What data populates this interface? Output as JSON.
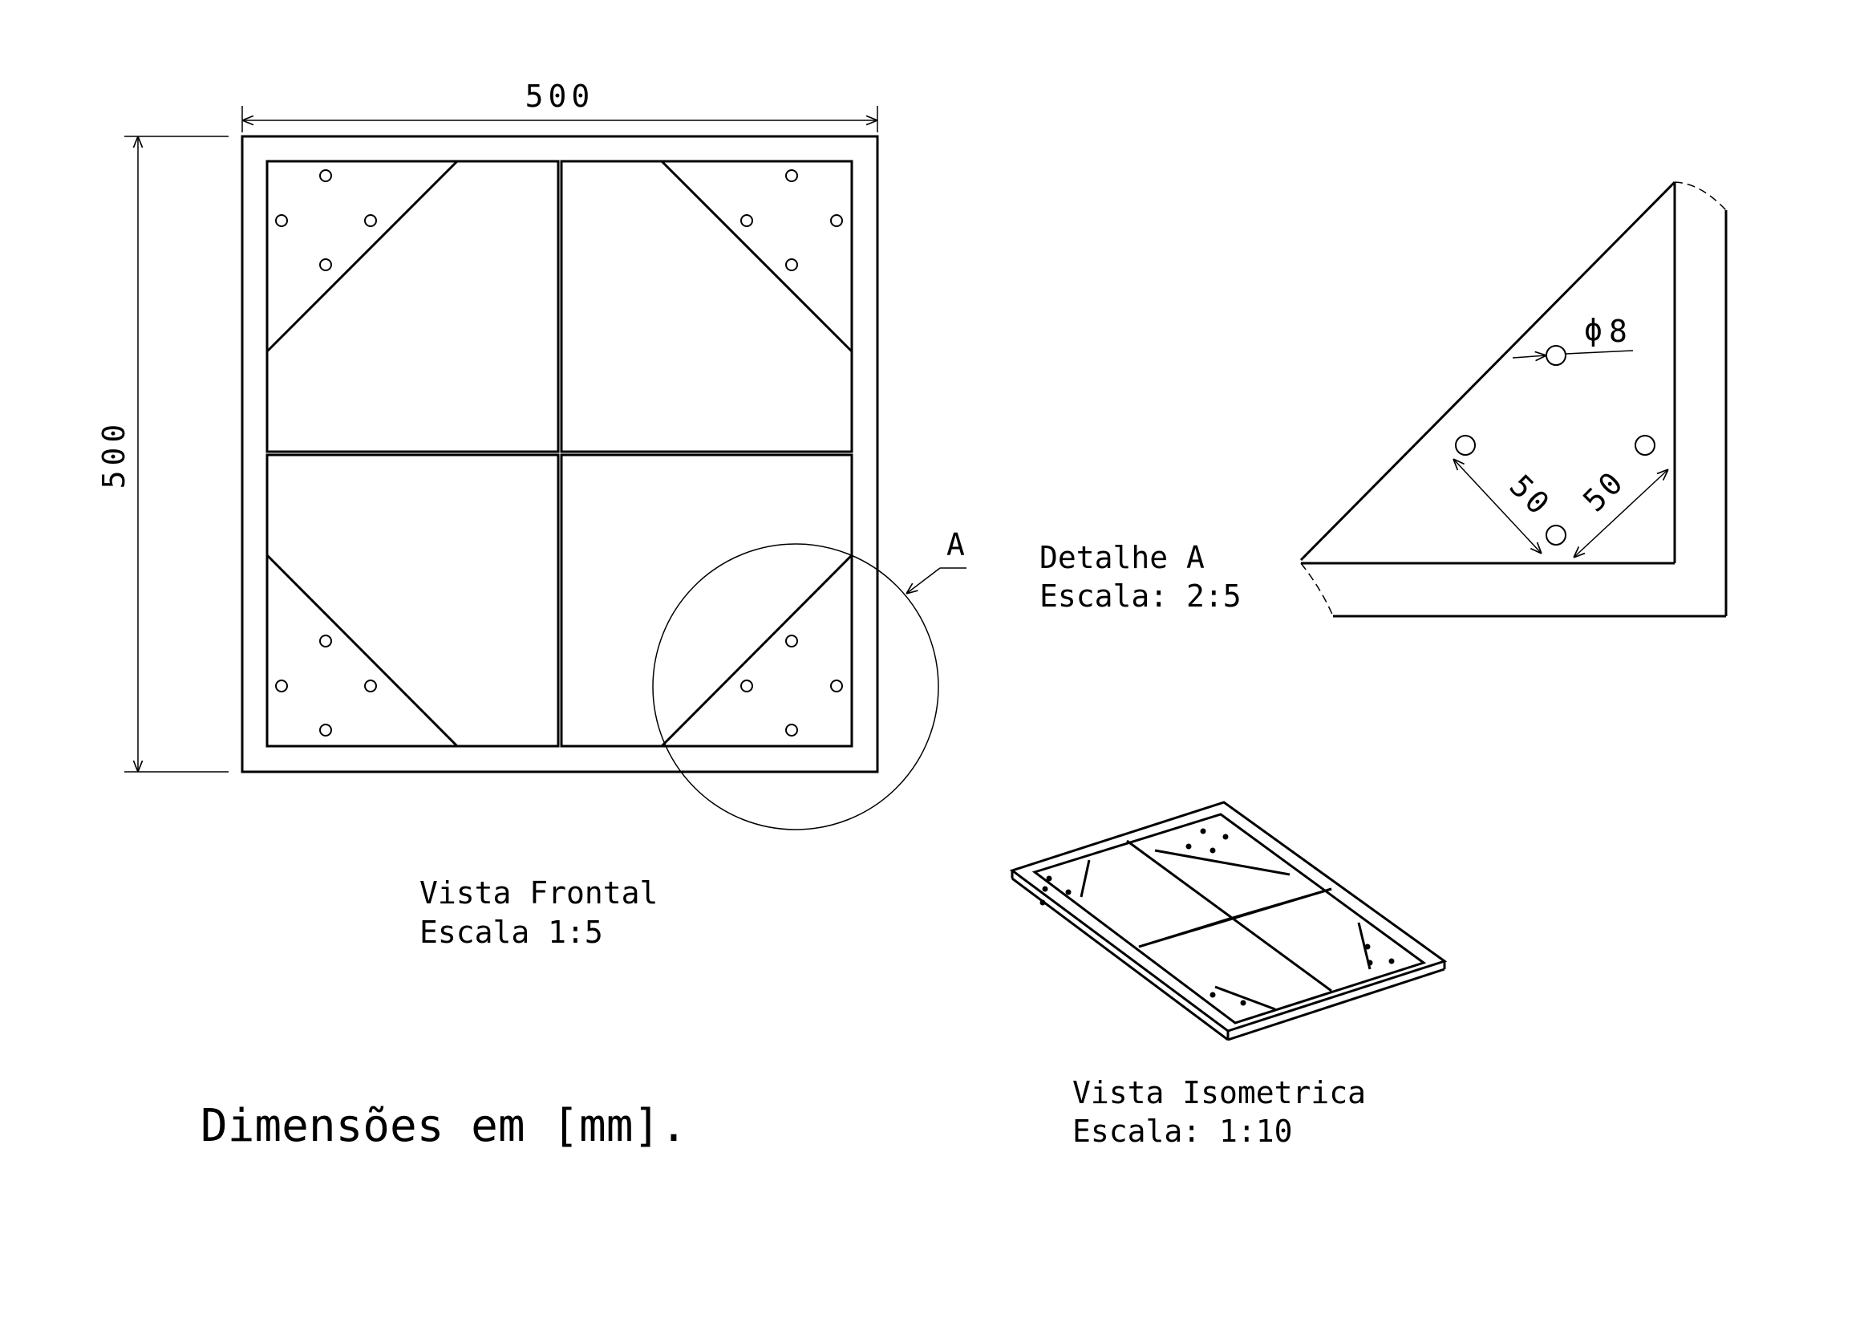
{
  "front_view": {
    "width_dim": "500",
    "height_dim": "500",
    "detail_marker": "A",
    "caption_line1": "Vista Frontal",
    "caption_line2": "Escala  1:5"
  },
  "detail_view": {
    "caption_line1": "Detalhe A",
    "caption_line2": "Escala:  2:5",
    "hole_dim": "8",
    "spacing_dim_1": "50",
    "spacing_dim_2": "50"
  },
  "iso_view": {
    "caption_line1": "Vista Isometrica",
    "caption_line2": "Escala:  1:10"
  },
  "notes": {
    "units": "Dimensões em [mm]."
  }
}
